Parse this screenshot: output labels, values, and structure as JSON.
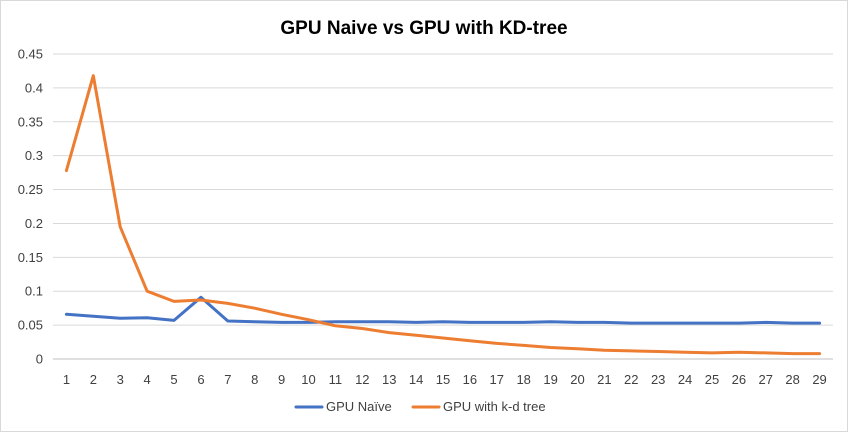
{
  "chart_data": {
    "type": "line",
    "title": "GPU Naive vs GPU with KD-tree",
    "xlabel": "",
    "ylabel": "",
    "x": [
      1,
      2,
      3,
      4,
      5,
      6,
      7,
      8,
      9,
      10,
      11,
      12,
      13,
      14,
      15,
      16,
      17,
      18,
      19,
      20,
      21,
      22,
      23,
      24,
      25,
      26,
      27,
      28,
      29
    ],
    "y_ticks": [
      "0",
      "0.05",
      "0.1",
      "0.15",
      "0.2",
      "0.25",
      "0.3",
      "0.35",
      "0.4",
      "0.45"
    ],
    "ylim": [
      0,
      0.45
    ],
    "grid": true,
    "legend_position": "bottom",
    "series": [
      {
        "name": "GPU Naïve",
        "color": "#4472C4",
        "values": [
          0.066,
          0.063,
          0.06,
          0.061,
          0.057,
          0.091,
          0.056,
          0.055,
          0.054,
          0.054,
          0.055,
          0.055,
          0.055,
          0.054,
          0.055,
          0.054,
          0.054,
          0.054,
          0.055,
          0.054,
          0.054,
          0.053,
          0.053,
          0.053,
          0.053,
          0.053,
          0.054,
          0.053,
          0.053
        ]
      },
      {
        "name": "GPU with k-d tree",
        "color": "#ED7D31",
        "values": [
          0.278,
          0.418,
          0.195,
          0.1,
          0.085,
          0.087,
          0.082,
          0.075,
          0.066,
          0.058,
          0.049,
          0.045,
          0.039,
          0.035,
          0.031,
          0.027,
          0.023,
          0.02,
          0.017,
          0.015,
          0.013,
          0.012,
          0.011,
          0.01,
          0.009,
          0.01,
          0.009,
          0.008,
          0.008
        ]
      }
    ]
  }
}
